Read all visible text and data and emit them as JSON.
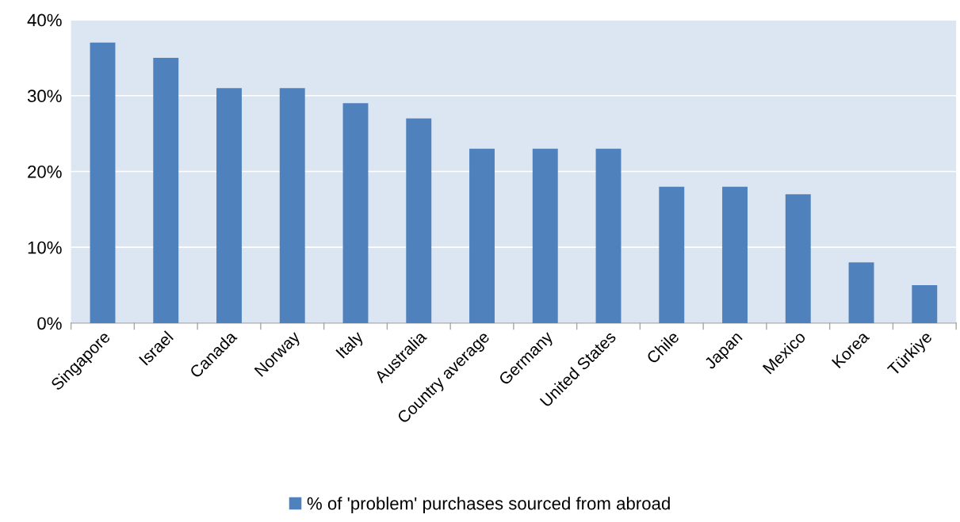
{
  "chart_data": {
    "type": "bar",
    "categories": [
      "Singapore",
      "Israel",
      "Canada",
      "Norway",
      "Italy",
      "Australia",
      "Country average",
      "Germany",
      "United States",
      "Chile",
      "Japan",
      "Mexico",
      "Korea",
      "Türkiye"
    ],
    "series": [
      {
        "name": "% of 'problem' purchases sourced from abroad",
        "color": "#4f81bd",
        "values": [
          37,
          35,
          31,
          31,
          29,
          27,
          23,
          23,
          23,
          18,
          18,
          17,
          8,
          5
        ]
      }
    ],
    "ylim": [
      0,
      40
    ],
    "yticks": [
      {
        "value": 0,
        "label": "0%"
      },
      {
        "value": 10,
        "label": "10%"
      },
      {
        "value": 20,
        "label": "20%"
      },
      {
        "value": 30,
        "label": "30%"
      },
      {
        "value": 40,
        "label": "40%"
      }
    ],
    "grid": "y",
    "legend": "bottom"
  }
}
